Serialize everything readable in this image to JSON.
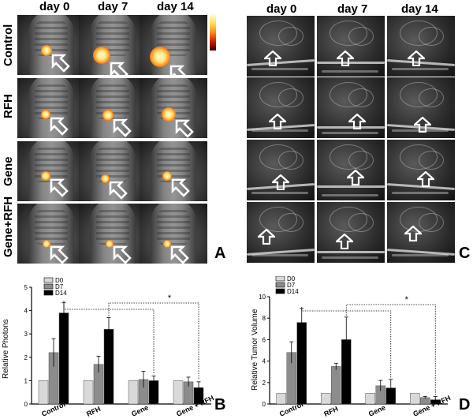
{
  "panel_a": {
    "day_headers": [
      "day 0",
      "day 7",
      "day 14"
    ],
    "row_labels": [
      "Control",
      "RFH",
      "Gene",
      "Gene+RFH"
    ],
    "letter": "A",
    "colorbar_ticks": [
      "",
      "",
      "",
      ""
    ]
  },
  "panel_c": {
    "day_headers": [
      "day 0",
      "day 7",
      "day 14"
    ],
    "letter": "C"
  },
  "chart_data": [
    {
      "type": "bar",
      "panel": "B",
      "categories": [
        "Control",
        "RFH",
        "Gene",
        "Gene + RFH"
      ],
      "series": [
        {
          "name": "D0",
          "values": [
            1.0,
            1.0,
            1.0,
            1.0
          ],
          "errors": [
            0,
            0,
            0,
            0
          ],
          "color": "#d9d9d9"
        },
        {
          "name": "D7",
          "values": [
            2.2,
            1.7,
            1.05,
            0.95
          ],
          "errors": [
            0.6,
            0.35,
            0.35,
            0.2
          ],
          "color": "#8c8c8c"
        },
        {
          "name": "D14",
          "values": [
            3.9,
            3.2,
            1.0,
            0.7
          ],
          "errors": [
            0.45,
            0.5,
            0.2,
            0.25
          ],
          "color": "#000000"
        }
      ],
      "ylabel": "Relative Photons",
      "ylim": [
        0,
        5
      ],
      "yticks": [
        "0",
        "1",
        "2",
        "3",
        "4",
        "5"
      ],
      "significance": "*"
    },
    {
      "type": "bar",
      "panel": "D",
      "categories": [
        "Control",
        "RFH",
        "Gene",
        "Gene + RFH"
      ],
      "series": [
        {
          "name": "D0",
          "values": [
            1.0,
            1.0,
            1.0,
            1.0
          ],
          "errors": [
            0,
            0,
            0,
            0
          ],
          "color": "#d9d9d9"
        },
        {
          "name": "D7",
          "values": [
            4.8,
            3.5,
            1.7,
            0.6
          ],
          "errors": [
            1.0,
            0.3,
            0.5,
            0.1
          ],
          "color": "#8c8c8c"
        },
        {
          "name": "D14",
          "values": [
            7.6,
            6.0,
            1.5,
            0.4
          ],
          "errors": [
            1.3,
            2.1,
            0.8,
            0.3
          ],
          "color": "#000000"
        }
      ],
      "ylabel": "Relative Tumor Volume",
      "ylim": [
        0,
        10
      ],
      "yticks": [
        "0",
        "2",
        "4",
        "6",
        "8",
        "10"
      ],
      "significance": "*"
    }
  ],
  "panel_letters": {
    "b": "B",
    "d": "D"
  }
}
